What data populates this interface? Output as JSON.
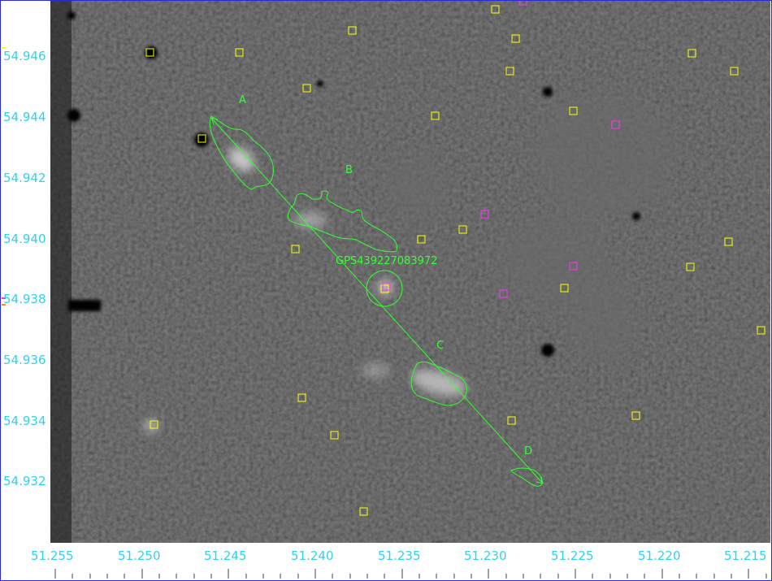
{
  "colors": {
    "axis_label": "#2fd2ee",
    "region": "#33ff33",
    "source_marker": "#ffff00",
    "catalog_marker": "#ff33ff",
    "frame": "#2b2bd6"
  },
  "axes": {
    "y_labels": [
      "54.946",
      "54.944",
      "54.942",
      "54.940",
      "54.938",
      "54.936",
      "54.934",
      "54.932"
    ],
    "x_labels": [
      "51.255",
      "51.250",
      "51.245",
      "51.240",
      "51.235",
      "51.230",
      "51.225",
      "51.220",
      "51.215"
    ]
  },
  "region_labels": {
    "a": "A",
    "b": "B",
    "c": "C",
    "d": "D",
    "target": "GPS439227083972"
  }
}
